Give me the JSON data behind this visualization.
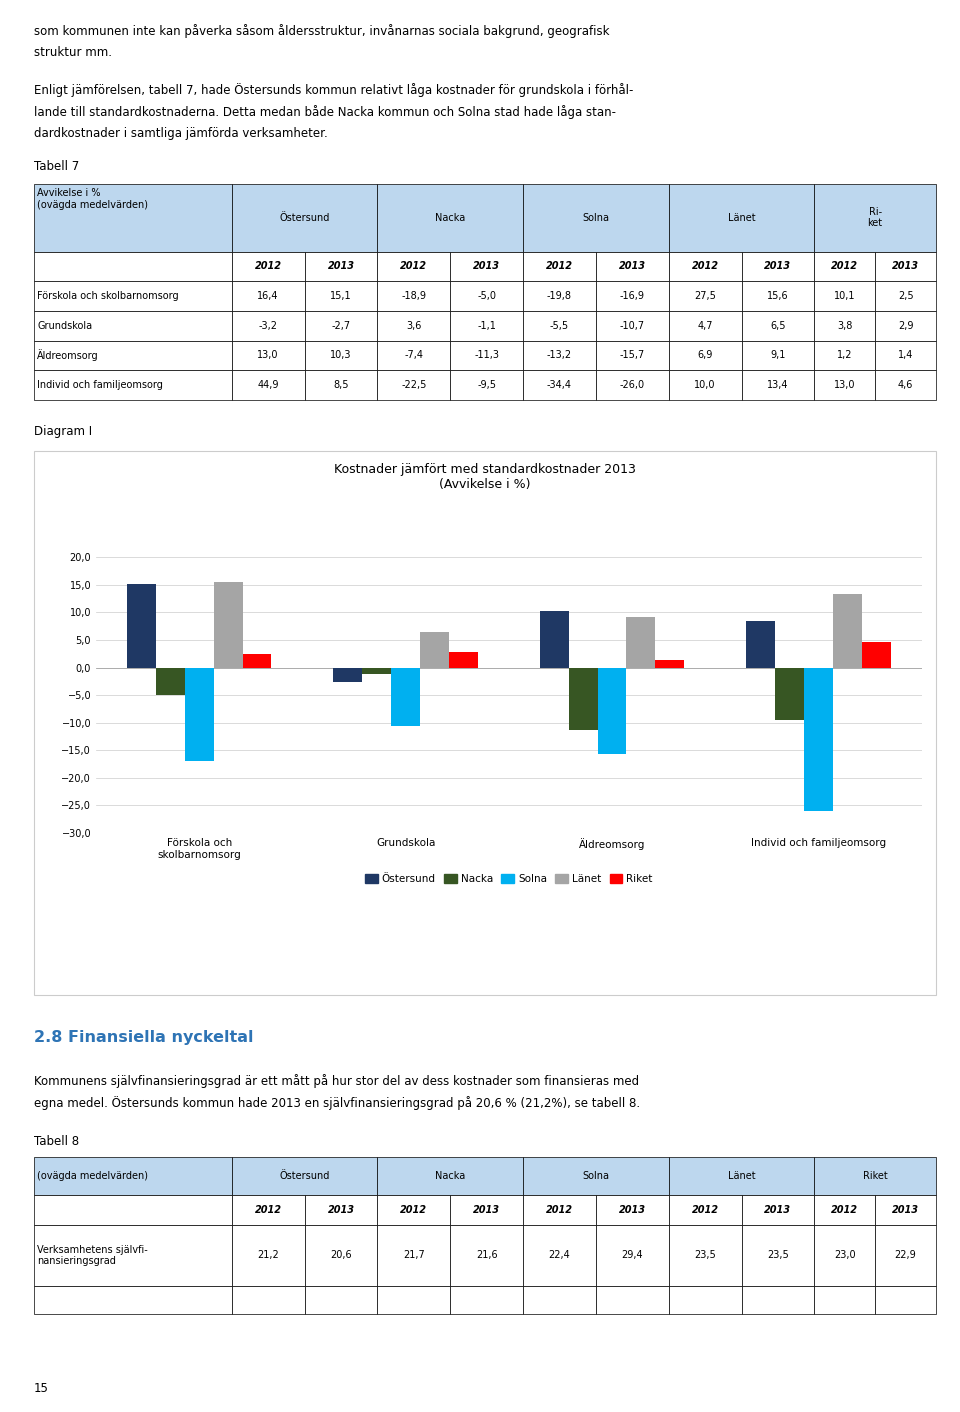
{
  "page_text_top": [
    "som kommunen inte kan påverka såsom åldersstruktur, invånarnas sociala bakgrund, geografisk",
    "struktur mm.",
    "",
    "Enligt jämförelsen, tabell 7, hade Östersunds kommun relativt låga kostnader för grundskola i förhål-",
    "lande till standardkostnaderna. Detta medan både Nacka kommun och Solna stad hade låga stan-",
    "dardkostnader i samtliga jämförda verksamheter."
  ],
  "tabell7_title": "Tabell 7",
  "tabell7_headers": [
    "Östersund",
    "Nacka",
    "Solna",
    "Länet",
    "Ri-\nket"
  ],
  "tabell7_years": [
    "2012",
    "2013",
    "2012",
    "2013",
    "2012",
    "2013",
    "2012",
    "2013",
    "2012",
    "2013"
  ],
  "tabell7_rows": [
    [
      "Förskola och skolbarnomsorg",
      16.4,
      15.1,
      -18.9,
      -5.0,
      -19.8,
      -16.9,
      27.5,
      15.6,
      10.1,
      2.5
    ],
    [
      "Grundskola",
      -3.2,
      -2.7,
      3.6,
      -1.1,
      -5.5,
      -10.7,
      4.7,
      6.5,
      3.8,
      2.9
    ],
    [
      "Äldreomsorg",
      13.0,
      10.3,
      -7.4,
      -11.3,
      -13.2,
      -15.7,
      6.9,
      9.1,
      1.2,
      1.4
    ],
    [
      "Individ och familjeomsorg",
      44.9,
      8.5,
      -22.5,
      -9.5,
      -34.4,
      -26.0,
      10.0,
      13.4,
      13.0,
      4.6
    ]
  ],
  "diagram_title": "Diagram I",
  "chart_title": "Kostnader jämfört med standardkostnader 2013\n(Avvikelse i %)",
  "chart_categories": [
    "Förskola och\nskolbarnomsorg",
    "Grundskola",
    "Äldreomsorg",
    "Individ och familjeomsorg"
  ],
  "chart_series": {
    "Östersund": [
      15.1,
      -2.7,
      10.3,
      8.5
    ],
    "Nacka": [
      -5.0,
      -1.1,
      -11.3,
      -9.5
    ],
    "Solna": [
      -16.9,
      -10.7,
      -15.7,
      -26.0
    ],
    "Länet": [
      15.6,
      6.5,
      9.1,
      13.4
    ],
    "Riket": [
      2.5,
      2.9,
      1.4,
      4.6
    ]
  },
  "chart_colors": {
    "Östersund": "#1F3864",
    "Nacka": "#375623",
    "Solna": "#00B0F0",
    "Länet": "#A5A5A5",
    "Riket": "#FF0000"
  },
  "chart_ylim": [
    -30.0,
    20.0
  ],
  "chart_yticks": [
    -30.0,
    -25.0,
    -20.0,
    -15.0,
    -10.0,
    -5.0,
    0.0,
    5.0,
    10.0,
    15.0,
    20.0
  ],
  "section_title": "2.8 Finansiella nyckeltal",
  "section_color": "#2E74B5",
  "section_text1": "Kommunens självfinansieringsgrad är ett mått på hur stor del av dess kostnader som finansieras med",
  "section_text2": "egna medel. Östersunds kommun hade 2013 en självfinansieringsgrad på 20,6 % (21,2%), se tabell 8.",
  "tabell8_title": "Tabell 8",
  "tabell8_header_col0": "(ovägda medelvärden)",
  "tabell8_headers": [
    "Östersund",
    "Nacka",
    "Solna",
    "Länet",
    "Riket"
  ],
  "tabell8_years": [
    "2012",
    "2013",
    "2012",
    "2013",
    "2012",
    "2013",
    "2012",
    "2013",
    "2012",
    "2013"
  ],
  "tabell8_rows": [
    [
      "Verksamhetens självfi-\nnansieringsgrad",
      21.2,
      20.6,
      21.7,
      21.6,
      22.4,
      29.4,
      23.5,
      23.5,
      23.0,
      22.9
    ]
  ],
  "page_number": "15",
  "bg_color": "#FFFFFF",
  "table_header_bg": "#BDD7EE",
  "text_color": "#000000"
}
